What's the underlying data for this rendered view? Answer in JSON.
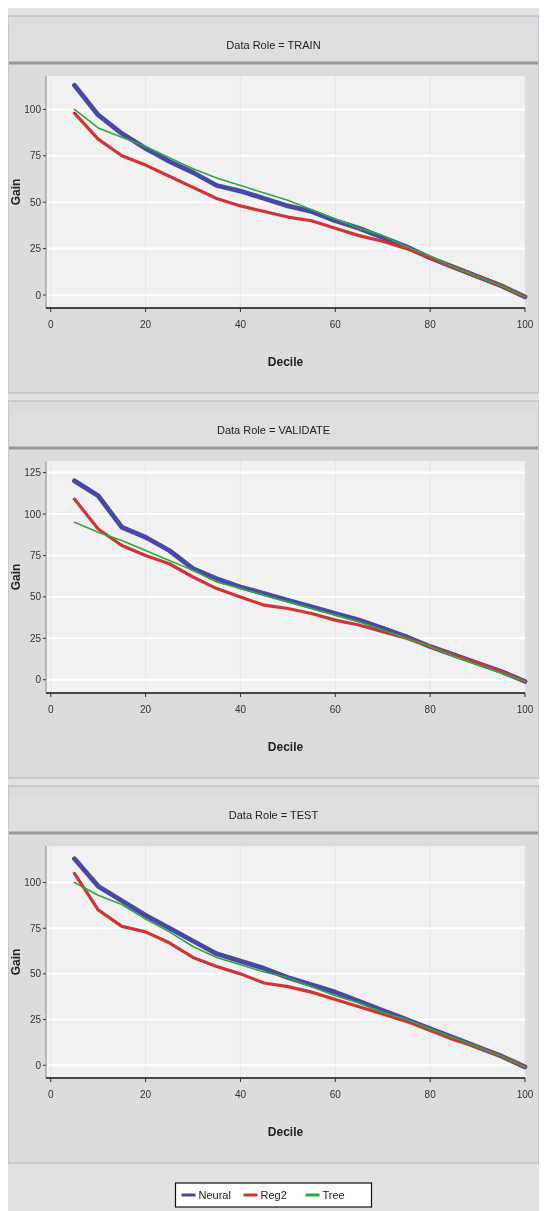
{
  "chart_data": [
    {
      "type": "line",
      "title": "Data Role = TRAIN",
      "xlabel": "Decile",
      "ylabel": "Gain",
      "x": [
        5,
        10,
        15,
        20,
        25,
        30,
        35,
        40,
        45,
        50,
        55,
        60,
        65,
        70,
        75,
        80,
        85,
        90,
        95,
        100
      ],
      "xlim": [
        -1,
        100
      ],
      "xticks": [
        0,
        20,
        40,
        60,
        80,
        100
      ],
      "ylim": [
        -7,
        118
      ],
      "yticks": [
        0,
        25,
        50,
        75,
        100
      ],
      "grid": true,
      "legend": false,
      "series": [
        {
          "color": "#4848a8",
          "values": [
            113,
            97,
            87,
            79,
            72,
            66,
            59,
            56,
            52,
            48,
            45,
            40,
            36,
            31,
            26,
            20,
            15,
            10,
            5,
            -1
          ]
        },
        {
          "color": "#d03434",
          "values": [
            98,
            84,
            75,
            70,
            64,
            58,
            52,
            48,
            45,
            42,
            40,
            36,
            32,
            29,
            25,
            20,
            15,
            10,
            5,
            -1
          ]
        },
        {
          "color": "#2eaa3a",
          "values": [
            100,
            90,
            85,
            80,
            74,
            68,
            63,
            59,
            55,
            51,
            46,
            41,
            36,
            32,
            26,
            21,
            15,
            10,
            5,
            -1
          ]
        }
      ]
    },
    {
      "type": "line",
      "title": "Data Role = VALIDATE",
      "xlabel": "Decile",
      "ylabel": "Gain",
      "x": [
        5,
        10,
        15,
        20,
        25,
        30,
        35,
        40,
        45,
        50,
        55,
        60,
        65,
        70,
        75,
        80,
        85,
        90,
        95,
        100
      ],
      "xlim": [
        -1,
        100
      ],
      "xticks": [
        0,
        20,
        40,
        60,
        80,
        100
      ],
      "ylim": [
        -8,
        132
      ],
      "yticks": [
        0,
        25,
        50,
        75,
        100,
        125
      ],
      "grid": true,
      "legend": false,
      "series": [
        {
          "color": "#4848a8",
          "values": [
            120,
            111,
            92,
            86,
            78,
            67,
            61,
            56,
            52,
            48,
            44,
            40,
            36,
            31,
            26,
            20,
            15,
            10,
            5,
            -1
          ]
        },
        {
          "color": "#d03434",
          "values": [
            109,
            91,
            81,
            75,
            70,
            62,
            55,
            50,
            45,
            43,
            40,
            36,
            33,
            29,
            25,
            20,
            15,
            10,
            5,
            -1
          ]
        },
        {
          "color": "#2eaa3a",
          "values": [
            95,
            89,
            84,
            78,
            72,
            66,
            59,
            55,
            51,
            47,
            43,
            39,
            35,
            30,
            25,
            20,
            14,
            9,
            4,
            -1
          ]
        }
      ]
    },
    {
      "type": "line",
      "title": "Data Role = TEST",
      "xlabel": "Decile",
      "ylabel": "Gain",
      "x": [
        5,
        10,
        15,
        20,
        25,
        30,
        35,
        40,
        45,
        50,
        55,
        60,
        65,
        70,
        75,
        80,
        85,
        90,
        95,
        100
      ],
      "xlim": [
        -1,
        100
      ],
      "xticks": [
        0,
        20,
        40,
        60,
        80,
        100
      ],
      "ylim": [
        -7,
        120
      ],
      "yticks": [
        0,
        25,
        50,
        75,
        100
      ],
      "grid": true,
      "legend": "bottom",
      "series": [
        {
          "name": "Neural",
          "color": "#4848a8",
          "values": [
            113,
            98,
            90,
            82,
            75,
            68,
            61,
            57,
            53,
            48,
            44,
            40,
            35,
            30,
            25,
            20,
            15,
            10,
            5,
            -1
          ]
        },
        {
          "name": "Reg2",
          "color": "#d03434",
          "values": [
            105,
            85,
            76,
            73,
            67,
            59,
            54,
            50,
            45,
            43,
            40,
            36,
            32,
            28,
            24,
            19,
            14,
            10,
            5,
            -1
          ]
        },
        {
          "name": "Tree",
          "color": "#2eaa3a",
          "values": [
            100,
            93,
            88,
            80,
            73,
            65,
            59,
            55,
            51,
            48,
            43,
            38,
            34,
            29,
            25,
            20,
            15,
            10,
            5,
            -1
          ]
        }
      ]
    }
  ]
}
